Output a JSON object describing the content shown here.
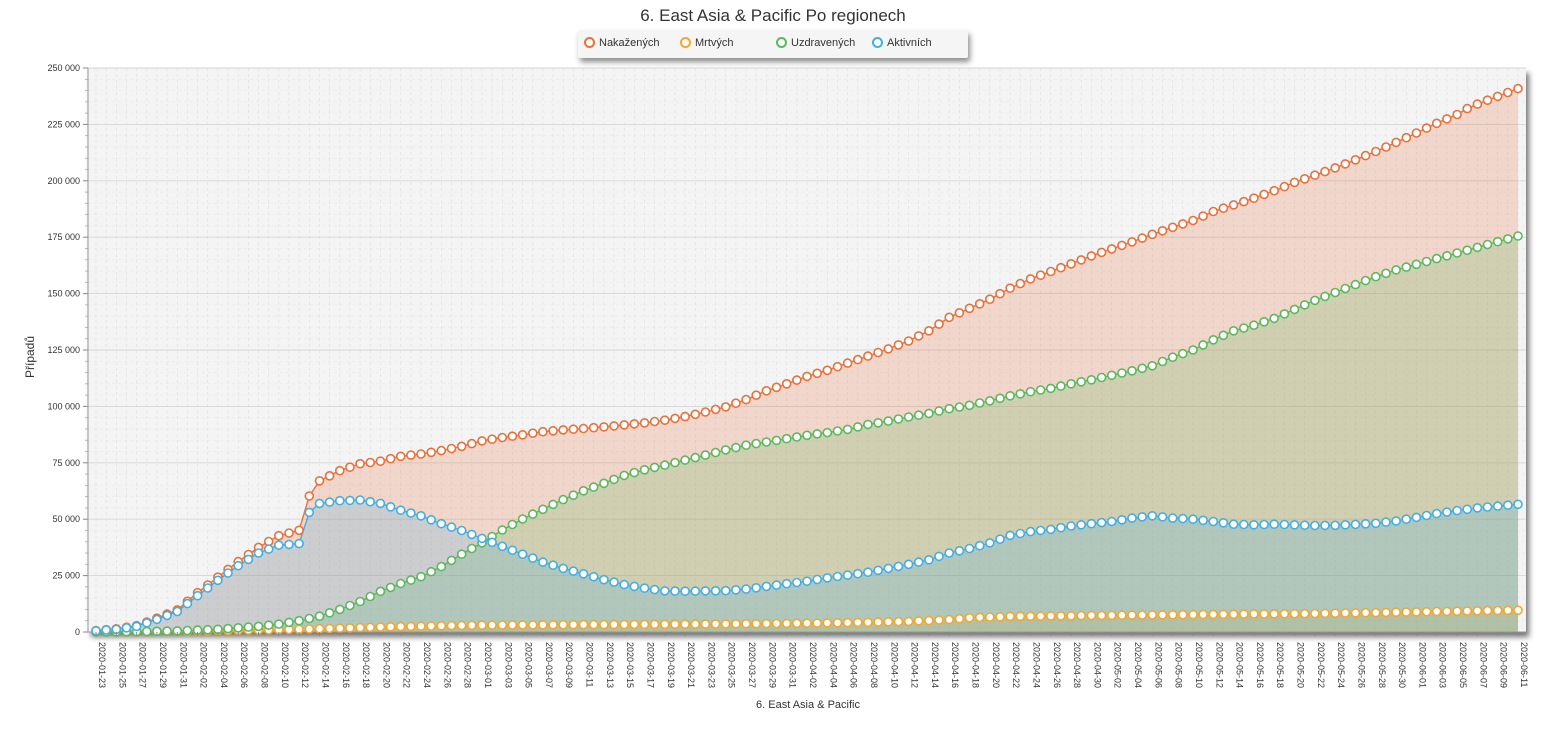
{
  "chart_data": {
    "type": "area",
    "title": "6. East Asia & Pacific Po regionech",
    "xlabel": "6. East Asia & Pacific",
    "ylabel": "Případů",
    "ylim": [
      0,
      250000
    ],
    "y_ticks": [
      "0",
      "25 000",
      "50 000",
      "75 000",
      "100 000",
      "125 000",
      "150 000",
      "175 000",
      "200 000",
      "225 000",
      "250 000"
    ],
    "x_tick_labels": [
      "2020-01-23",
      "2020-01-25",
      "2020-01-27",
      "2020-01-29",
      "2020-01-31",
      "2020-02-02",
      "2020-02-04",
      "2020-02-06",
      "2020-02-08",
      "2020-02-10",
      "2020-02-12",
      "2020-02-14",
      "2020-02-16",
      "2020-02-18",
      "2020-02-20",
      "2020-02-22",
      "2020-02-24",
      "2020-02-26",
      "2020-02-28",
      "2020-03-01",
      "2020-03-03",
      "2020-03-05",
      "2020-03-07",
      "2020-03-09",
      "2020-03-11",
      "2020-03-13",
      "2020-03-15",
      "2020-03-17",
      "2020-03-19",
      "2020-03-21",
      "2020-03-23",
      "2020-03-25",
      "2020-03-27",
      "2020-03-29",
      "2020-03-31",
      "2020-04-02",
      "2020-04-04",
      "2020-04-06",
      "2020-04-08",
      "2020-04-10",
      "2020-04-12",
      "2020-04-14",
      "2020-04-16",
      "2020-04-18",
      "2020-04-20",
      "2020-04-22",
      "2020-04-24",
      "2020-04-26",
      "2020-04-28",
      "2020-04-30",
      "2020-05-02",
      "2020-05-04",
      "2020-05-06",
      "2020-05-08",
      "2020-05-10",
      "2020-05-12",
      "2020-05-14",
      "2020-05-16",
      "2020-05-18",
      "2020-05-20",
      "2020-05-22",
      "2020-05-24",
      "2020-05-26",
      "2020-05-28",
      "2020-05-30",
      "2020-06-01",
      "2020-06-03",
      "2020-06-05",
      "2020-06-07",
      "2020-06-09",
      "2020-06-11"
    ],
    "x_start": "2020-01-23",
    "x_end": "2020-06-11",
    "legend_position": "top-center",
    "grid": true,
    "series": [
      {
        "name": "Nakažených",
        "color": "#e8703a",
        "keypoints": [
          [
            0,
            600
          ],
          [
            2,
            1400
          ],
          [
            4,
            2800
          ],
          [
            6,
            6100
          ],
          [
            8,
            9800
          ],
          [
            10,
            17400
          ],
          [
            12,
            24300
          ],
          [
            14,
            31200
          ],
          [
            16,
            37500
          ],
          [
            18,
            42700
          ],
          [
            20,
            45100
          ],
          [
            21,
            60300
          ],
          [
            22,
            67000
          ],
          [
            24,
            71500
          ],
          [
            26,
            74600
          ],
          [
            28,
            75700
          ],
          [
            30,
            77900
          ],
          [
            32,
            78900
          ],
          [
            34,
            80400
          ],
          [
            36,
            82300
          ],
          [
            38,
            84700
          ],
          [
            40,
            86200
          ],
          [
            42,
            87400
          ],
          [
            44,
            88800
          ],
          [
            46,
            89600
          ],
          [
            48,
            90200
          ],
          [
            50,
            90900
          ],
          [
            52,
            91800
          ],
          [
            54,
            92700
          ],
          [
            56,
            93900
          ],
          [
            58,
            95500
          ],
          [
            60,
            97500
          ],
          [
            62,
            99800
          ],
          [
            64,
            103000
          ],
          [
            66,
            106900
          ],
          [
            68,
            110000
          ],
          [
            70,
            113300
          ],
          [
            72,
            116000
          ],
          [
            74,
            119200
          ],
          [
            76,
            122300
          ],
          [
            78,
            125500
          ],
          [
            80,
            129000
          ],
          [
            82,
            133500
          ],
          [
            84,
            139500
          ],
          [
            86,
            143500
          ],
          [
            88,
            147500
          ],
          [
            90,
            152400
          ],
          [
            92,
            156500
          ],
          [
            94,
            159800
          ],
          [
            96,
            163200
          ],
          [
            98,
            166700
          ],
          [
            100,
            169800
          ],
          [
            102,
            172900
          ],
          [
            104,
            176300
          ],
          [
            106,
            179400
          ],
          [
            108,
            182400
          ],
          [
            110,
            186400
          ],
          [
            112,
            189300
          ],
          [
            114,
            192300
          ],
          [
            116,
            195600
          ],
          [
            118,
            199300
          ],
          [
            120,
            202500
          ],
          [
            122,
            205700
          ],
          [
            124,
            209300
          ],
          [
            126,
            213000
          ],
          [
            128,
            217000
          ],
          [
            130,
            221200
          ],
          [
            132,
            225500
          ],
          [
            134,
            229400
          ],
          [
            135,
            232000
          ],
          [
            136,
            234000
          ]
        ]
      },
      {
        "name": "Mrtvých",
        "color": "#f0a830",
        "keypoints": [
          [
            0,
            17
          ],
          [
            4,
            100
          ],
          [
            8,
            300
          ],
          [
            12,
            600
          ],
          [
            16,
            900
          ],
          [
            20,
            1200
          ],
          [
            24,
            1700
          ],
          [
            28,
            2200
          ],
          [
            32,
            2600
          ],
          [
            36,
            2900
          ],
          [
            40,
            3100
          ],
          [
            50,
            3300
          ],
          [
            60,
            3500
          ],
          [
            70,
            3900
          ],
          [
            76,
            4300
          ],
          [
            80,
            4700
          ],
          [
            84,
            5500
          ],
          [
            86,
            6300
          ],
          [
            90,
            6900
          ],
          [
            100,
            7400
          ],
          [
            110,
            7800
          ],
          [
            120,
            8200
          ],
          [
            130,
            8900
          ],
          [
            136,
            9400
          ]
        ]
      },
      {
        "name": "Uzdravených",
        "color": "#5cb85c",
        "keypoints": [
          [
            0,
            30
          ],
          [
            4,
            150
          ],
          [
            8,
            500
          ],
          [
            12,
            1200
          ],
          [
            16,
            2500
          ],
          [
            18,
            3500
          ],
          [
            20,
            5000
          ],
          [
            22,
            7000
          ],
          [
            24,
            10000
          ],
          [
            26,
            13500
          ],
          [
            28,
            18000
          ],
          [
            30,
            21500
          ],
          [
            32,
            24500
          ],
          [
            34,
            29000
          ],
          [
            36,
            34500
          ],
          [
            38,
            39500
          ],
          [
            40,
            45200
          ],
          [
            42,
            50100
          ],
          [
            44,
            54400
          ],
          [
            46,
            58700
          ],
          [
            48,
            62600
          ],
          [
            50,
            65900
          ],
          [
            52,
            69400
          ],
          [
            54,
            71900
          ],
          [
            56,
            74000
          ],
          [
            58,
            76200
          ],
          [
            60,
            78400
          ],
          [
            62,
            80700
          ],
          [
            64,
            82800
          ],
          [
            66,
            84200
          ],
          [
            68,
            85700
          ],
          [
            70,
            87200
          ],
          [
            72,
            88400
          ],
          [
            74,
            89800
          ],
          [
            76,
            92000
          ],
          [
            78,
            93500
          ],
          [
            80,
            95300
          ],
          [
            82,
            96900
          ],
          [
            84,
            99000
          ],
          [
            86,
            100500
          ],
          [
            88,
            102500
          ],
          [
            90,
            104700
          ],
          [
            92,
            106500
          ],
          [
            94,
            108000
          ],
          [
            96,
            110000
          ],
          [
            98,
            111800
          ],
          [
            100,
            113800
          ],
          [
            102,
            115800
          ],
          [
            104,
            118000
          ],
          [
            106,
            121800
          ],
          [
            108,
            125000
          ],
          [
            110,
            129500
          ],
          [
            112,
            133500
          ],
          [
            114,
            136000
          ],
          [
            116,
            139000
          ],
          [
            118,
            143000
          ],
          [
            120,
            147000
          ],
          [
            122,
            150500
          ],
          [
            124,
            154000
          ],
          [
            126,
            157500
          ],
          [
            128,
            160500
          ],
          [
            130,
            163000
          ],
          [
            132,
            165500
          ],
          [
            134,
            168000
          ],
          [
            136,
            170500
          ]
        ]
      },
      {
        "name": "Aktivních",
        "color": "#45aee0",
        "keypoints": [
          [
            0,
            550
          ],
          [
            2,
            1200
          ],
          [
            4,
            2500
          ],
          [
            6,
            5600
          ],
          [
            8,
            9100
          ],
          [
            10,
            16100
          ],
          [
            12,
            22900
          ],
          [
            14,
            29400
          ],
          [
            16,
            35000
          ],
          [
            18,
            38500
          ],
          [
            20,
            39200
          ],
          [
            21,
            53000
          ],
          [
            22,
            57000
          ],
          [
            24,
            58200
          ],
          [
            26,
            58500
          ],
          [
            28,
            57000
          ],
          [
            30,
            54000
          ],
          [
            32,
            51500
          ],
          [
            34,
            48000
          ],
          [
            36,
            45000
          ],
          [
            38,
            41500
          ],
          [
            40,
            38000
          ],
          [
            42,
            34500
          ],
          [
            44,
            31000
          ],
          [
            46,
            28200
          ],
          [
            48,
            25800
          ],
          [
            50,
            23200
          ],
          [
            52,
            21000
          ],
          [
            54,
            19400
          ],
          [
            56,
            18200
          ],
          [
            58,
            18100
          ],
          [
            60,
            18200
          ],
          [
            62,
            18300
          ],
          [
            64,
            19000
          ],
          [
            66,
            20200
          ],
          [
            68,
            21400
          ],
          [
            70,
            22500
          ],
          [
            72,
            24000
          ],
          [
            74,
            25200
          ],
          [
            76,
            26500
          ],
          [
            78,
            28200
          ],
          [
            80,
            30000
          ],
          [
            82,
            32000
          ],
          [
            84,
            35000
          ],
          [
            86,
            37000
          ],
          [
            88,
            39500
          ],
          [
            90,
            42800
          ],
          [
            92,
            44500
          ],
          [
            94,
            45500
          ],
          [
            96,
            47000
          ],
          [
            98,
            48000
          ],
          [
            100,
            49000
          ],
          [
            102,
            50500
          ],
          [
            104,
            51500
          ],
          [
            106,
            50500
          ],
          [
            108,
            50000
          ],
          [
            110,
            49000
          ],
          [
            112,
            47800
          ],
          [
            114,
            47500
          ],
          [
            116,
            47800
          ],
          [
            118,
            47500
          ],
          [
            120,
            47200
          ],
          [
            122,
            47300
          ],
          [
            124,
            47700
          ],
          [
            126,
            48200
          ],
          [
            128,
            49200
          ],
          [
            130,
            50800
          ],
          [
            132,
            52500
          ],
          [
            134,
            53800
          ],
          [
            136,
            55000
          ]
        ]
      }
    ]
  }
}
